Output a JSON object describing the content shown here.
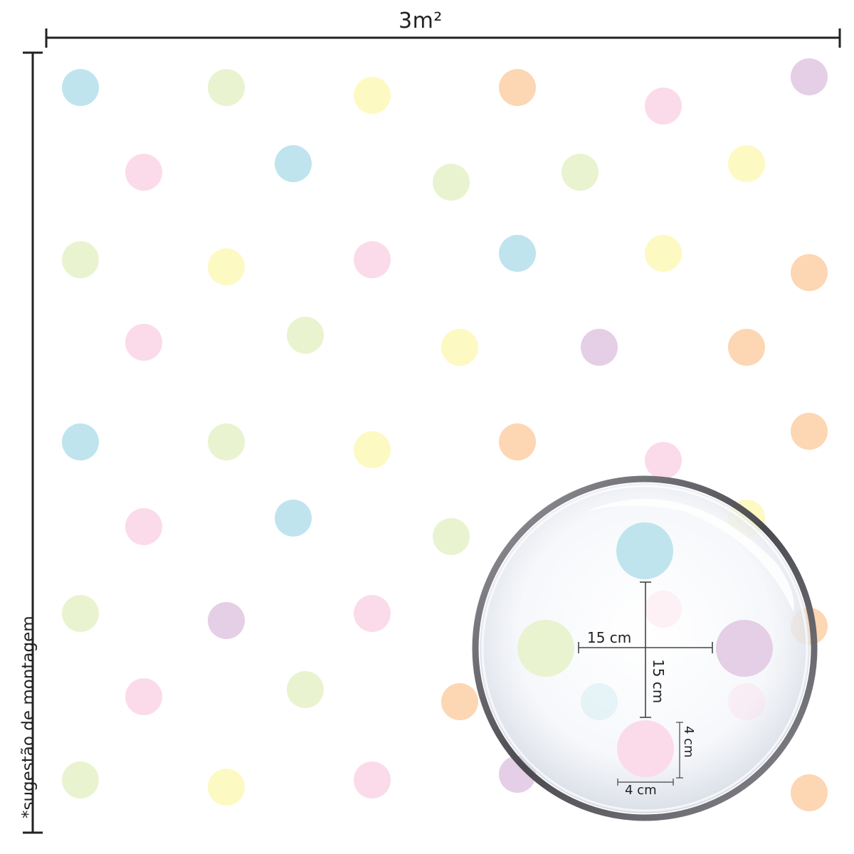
{
  "labels": {
    "width": "3m²",
    "height": "*sugestão de montagem"
  },
  "magnifier": {
    "horizontal_spacing": "15 cm",
    "vertical_spacing": "15 cm",
    "dot_width": "4 cm",
    "dot_height": "4 cm"
  },
  "colors": {
    "blue": "#bfe4ee",
    "green": "#e9f3cf",
    "yellow": "#fdf9c2",
    "orange": "#fdd6b3",
    "pink": "#fbdbe9",
    "purple": "#e4cfe6",
    "lines": "#222222",
    "lens_ring": "#5e5e62"
  }
}
